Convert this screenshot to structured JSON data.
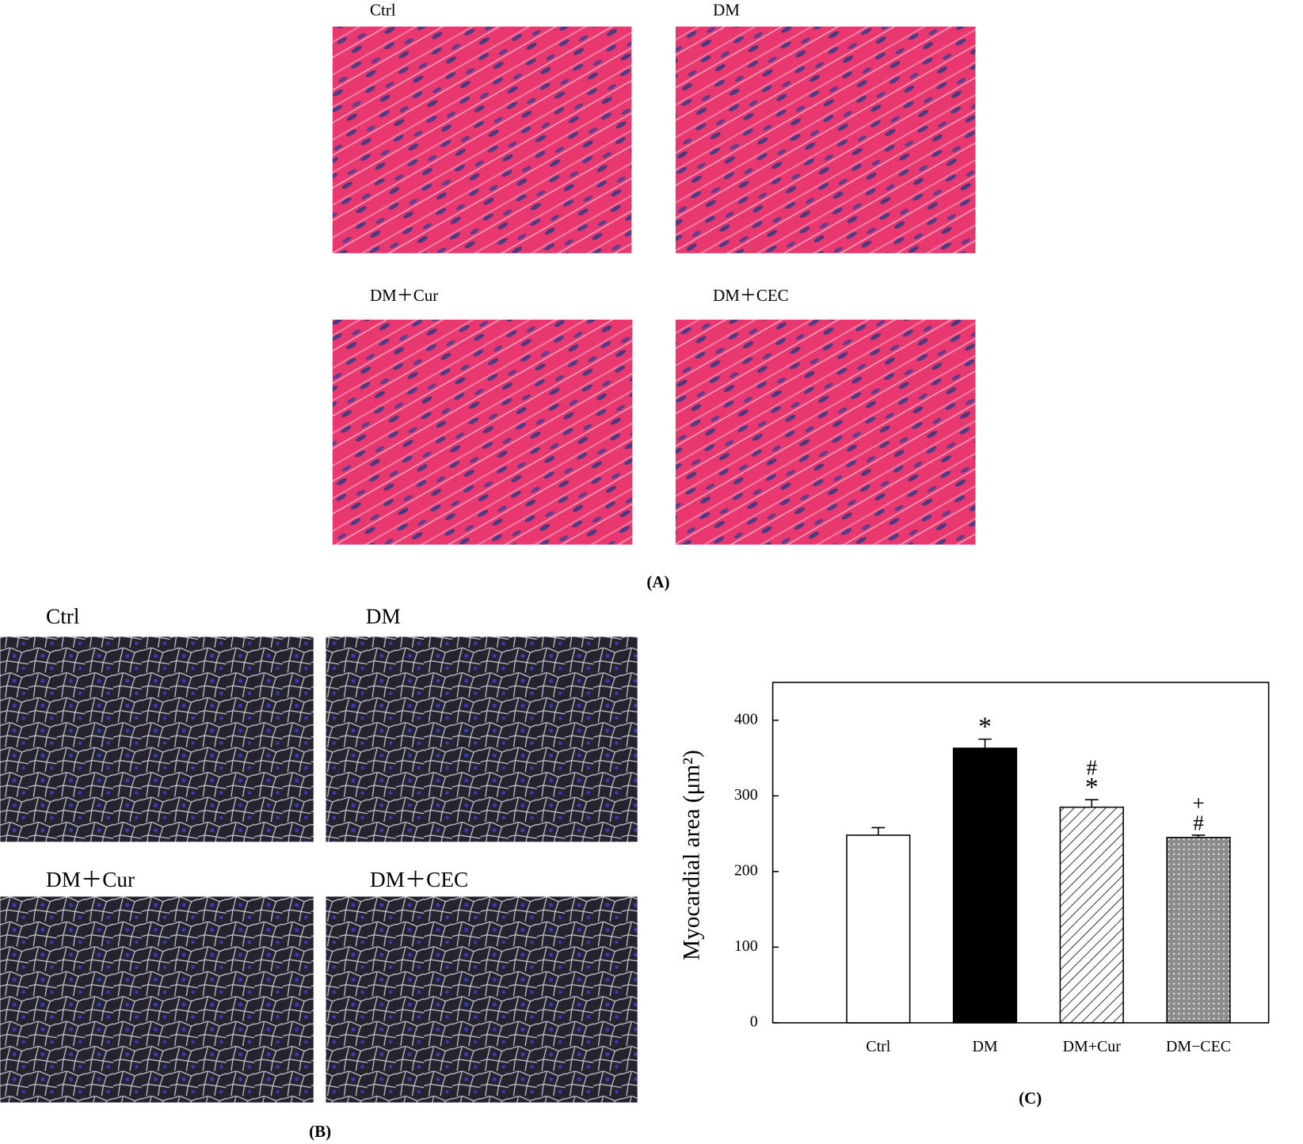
{
  "panel_a": {
    "labels": [
      "Ctrl",
      "DM",
      "DM＋Cur",
      "DM＋CEC"
    ],
    "caption": "(A)"
  },
  "panel_b": {
    "labels": [
      "Ctrl",
      "DM",
      "DM＋Cur",
      "DM＋CEC"
    ],
    "caption": "(B)"
  },
  "chart_data": {
    "type": "bar",
    "caption": "(C)",
    "y_label": "Myocardial area (μm²)",
    "categories": [
      "Ctrl",
      "DM",
      "DM+Cur",
      "DM−CEC"
    ],
    "values": [
      248,
      363,
      285,
      245
    ],
    "errors": [
      10,
      12,
      10,
      3
    ],
    "colors": [
      "#ffffff",
      "#000000",
      "#ffffff",
      "#8c8c8c"
    ],
    "patterns": [
      "solid",
      "solid",
      "hatch",
      "dots"
    ],
    "annotations": [
      {
        "category": "DM",
        "labels": [
          "*"
        ]
      },
      {
        "category": "DM+Cur",
        "labels": [
          "#",
          "*"
        ]
      },
      {
        "category": "DM−CEC",
        "labels": [
          "+",
          "#"
        ]
      }
    ],
    "ylim": [
      0,
      450
    ],
    "yticks": [
      0,
      100,
      200,
      300,
      400
    ]
  }
}
